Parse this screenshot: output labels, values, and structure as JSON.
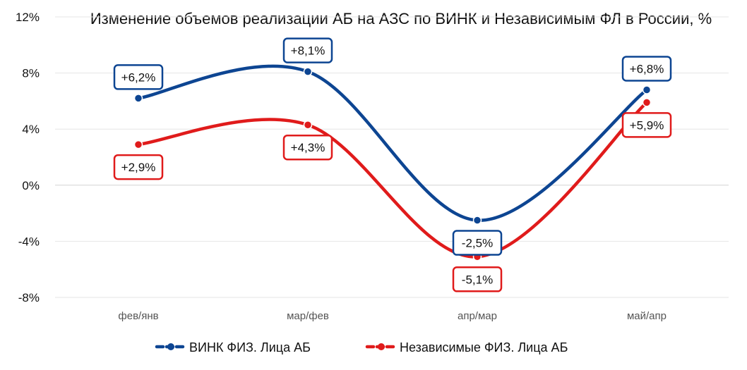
{
  "chart_data": {
    "type": "line",
    "title": "Изменение объемов реализации АБ на АЗС по ВИНК и Независимым ФЛ в России, %",
    "xlabel": "",
    "ylabel": "",
    "categories": [
      "фев/янв",
      "мар/фев",
      "апр/мар",
      "май/апр"
    ],
    "ylim": [
      -8,
      12
    ],
    "yticks": [
      -8,
      -4,
      0,
      4,
      8,
      12
    ],
    "ytick_labels": [
      "-8%",
      "-4%",
      "0%",
      "4%",
      "8%",
      "12%"
    ],
    "grid": "horizontal",
    "legend_position": "bottom",
    "smooth": true,
    "series": [
      {
        "name": "ВИНК ФИЗ. Лица АБ",
        "values": [
          6.2,
          8.1,
          -2.5,
          6.8
        ],
        "labels": [
          "+6,2%",
          "+8,1%",
          "-2,5%",
          "+6,8%"
        ],
        "label_side": [
          "above",
          "above",
          "below",
          "above"
        ],
        "color": "#0d4592"
      },
      {
        "name": "Независимые ФИЗ. Лица АБ",
        "values": [
          2.9,
          4.3,
          -5.1,
          5.9
        ],
        "labels": [
          "+2,9%",
          "+4,3%",
          "-5,1%",
          "+5,9%"
        ],
        "label_side": [
          "below",
          "below",
          "below",
          "below"
        ],
        "color": "#e01b1b"
      }
    ]
  }
}
